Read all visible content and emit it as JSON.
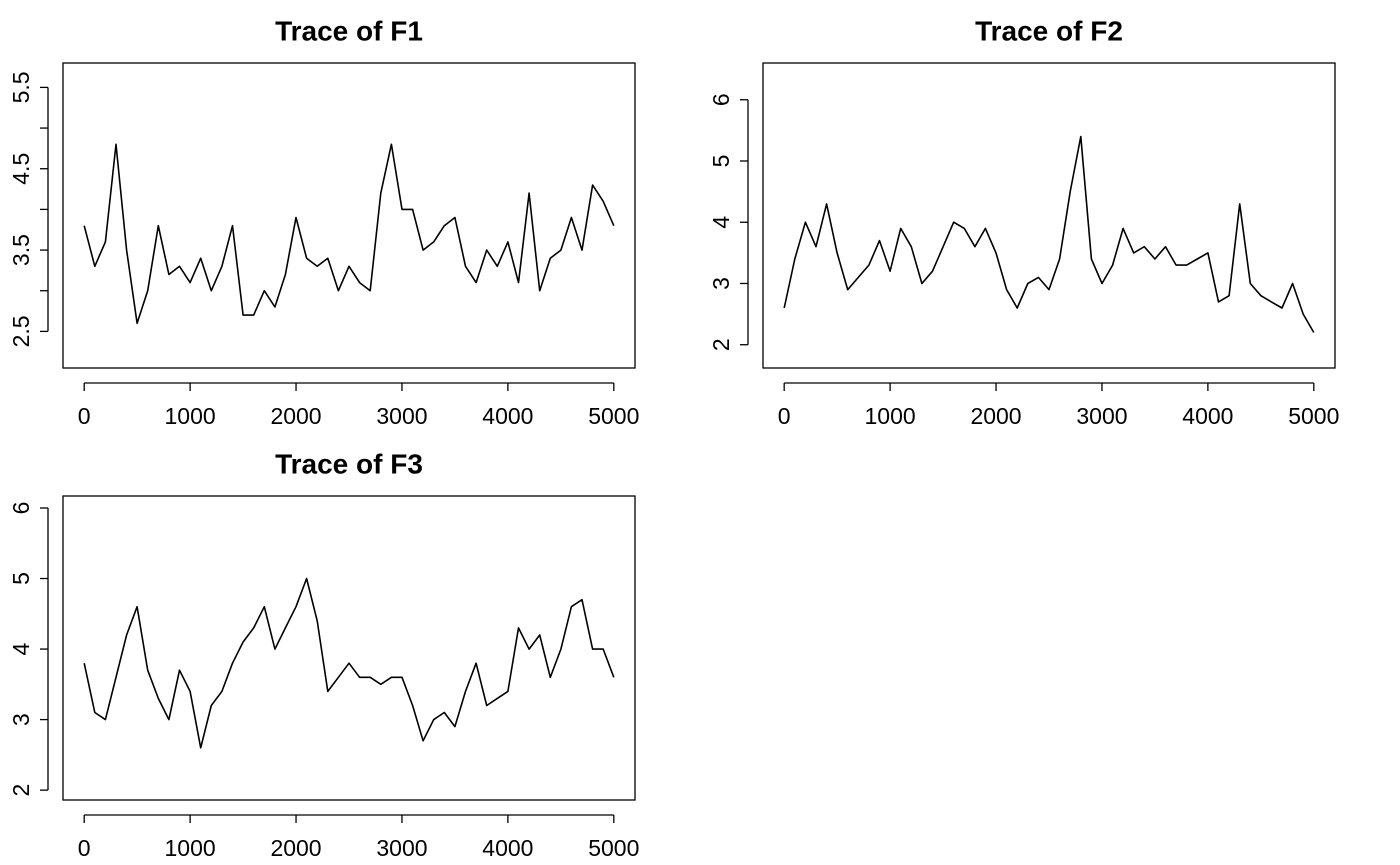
{
  "chart_data": [
    {
      "type": "line",
      "title": "Trace of F1",
      "color": "#000000",
      "x": [
        0,
        100,
        200,
        300,
        400,
        500,
        600,
        700,
        800,
        900,
        1000,
        1100,
        1200,
        1300,
        1400,
        1500,
        1600,
        1700,
        1800,
        1900,
        2000,
        2100,
        2200,
        2300,
        2400,
        2500,
        2600,
        2700,
        2800,
        2900,
        3000,
        3100,
        3200,
        3300,
        3400,
        3500,
        3600,
        3700,
        3800,
        3900,
        4000,
        4100,
        4200,
        4300,
        4400,
        4500,
        4600,
        4700,
        4800,
        4900,
        5000
      ],
      "values": [
        3.8,
        3.3,
        3.6,
        4.8,
        3.5,
        2.6,
        3.0,
        3.8,
        3.2,
        3.3,
        3.1,
        3.4,
        3.0,
        3.3,
        3.8,
        2.7,
        2.7,
        3.0,
        2.8,
        3.2,
        3.9,
        3.4,
        3.3,
        3.4,
        3.0,
        3.3,
        3.1,
        3.0,
        4.2,
        4.8,
        4.0,
        4.0,
        3.5,
        3.6,
        3.8,
        3.9,
        3.3,
        3.1,
        3.5,
        3.3,
        3.6,
        3.1,
        4.2,
        3.0,
        3.4,
        3.5,
        3.9,
        3.5,
        4.3,
        4.1,
        3.8
      ],
      "xlim": [
        -200,
        5200
      ],
      "ylim": [
        2.05,
        5.8
      ],
      "xticks": [
        0,
        1000,
        2000,
        3000,
        4000,
        5000
      ],
      "yticks": [
        2.5,
        3.5,
        4.5,
        5.5
      ],
      "yminor_ticks": [
        3,
        4,
        5
      ]
    },
    {
      "type": "line",
      "title": "Trace of F2",
      "color": "#000000",
      "x": [
        0,
        100,
        200,
        300,
        400,
        500,
        600,
        700,
        800,
        900,
        1000,
        1100,
        1200,
        1300,
        1400,
        1500,
        1600,
        1700,
        1800,
        1900,
        2000,
        2100,
        2200,
        2300,
        2400,
        2500,
        2600,
        2700,
        2800,
        2900,
        3000,
        3100,
        3200,
        3300,
        3400,
        3500,
        3600,
        3700,
        3800,
        3900,
        4000,
        4100,
        4200,
        4300,
        4400,
        4500,
        4600,
        4700,
        4800,
        4900,
        5000
      ],
      "values": [
        2.6,
        3.4,
        4.0,
        3.6,
        4.3,
        3.5,
        2.9,
        3.1,
        3.3,
        3.7,
        3.2,
        3.9,
        3.6,
        3.0,
        3.2,
        3.6,
        4.0,
        3.9,
        3.6,
        3.9,
        3.5,
        2.9,
        2.6,
        3.0,
        3.1,
        2.9,
        3.4,
        4.5,
        5.4,
        3.4,
        3.0,
        3.3,
        3.9,
        3.5,
        3.6,
        3.4,
        3.6,
        3.3,
        3.3,
        3.4,
        3.5,
        2.7,
        2.8,
        4.3,
        3.0,
        2.8,
        2.7,
        2.6,
        3.0,
        2.5,
        2.2
      ],
      "xlim": [
        -200,
        5200
      ],
      "ylim": [
        1.62,
        6.6
      ],
      "xticks": [
        0,
        1000,
        2000,
        3000,
        4000,
        5000
      ],
      "yticks": [
        2,
        3,
        4,
        5,
        6
      ]
    },
    {
      "type": "line",
      "title": "Trace of F3",
      "color": "#000000",
      "x": [
        0,
        100,
        200,
        300,
        400,
        500,
        600,
        700,
        800,
        900,
        1000,
        1100,
        1200,
        1300,
        1400,
        1500,
        1600,
        1700,
        1800,
        1900,
        2000,
        2100,
        2200,
        2300,
        2400,
        2500,
        2600,
        2700,
        2800,
        2900,
        3000,
        3100,
        3200,
        3300,
        3400,
        3500,
        3600,
        3700,
        3800,
        3900,
        4000,
        4100,
        4200,
        4300,
        4400,
        4500,
        4600,
        4700,
        4800,
        4900,
        5000
      ],
      "values": [
        3.8,
        3.1,
        3.0,
        3.6,
        4.2,
        4.6,
        3.7,
        3.3,
        3.0,
        3.7,
        3.4,
        2.6,
        3.2,
        3.4,
        3.8,
        4.1,
        4.3,
        4.6,
        4.0,
        4.3,
        4.6,
        5.0,
        4.4,
        3.4,
        3.6,
        3.8,
        3.6,
        3.6,
        3.5,
        3.6,
        3.6,
        3.2,
        2.7,
        3.0,
        3.1,
        2.9,
        3.4,
        3.8,
        3.2,
        3.3,
        3.4,
        4.3,
        4.0,
        4.2,
        3.6,
        4.0,
        4.6,
        4.7,
        4.0,
        4.0,
        3.6
      ],
      "xlim": [
        -200,
        5200
      ],
      "ylim": [
        1.86,
        6.17
      ],
      "xticks": [
        0,
        1000,
        2000,
        3000,
        4000,
        5000
      ],
      "yticks": [
        2,
        3,
        4,
        5,
        6
      ]
    }
  ]
}
